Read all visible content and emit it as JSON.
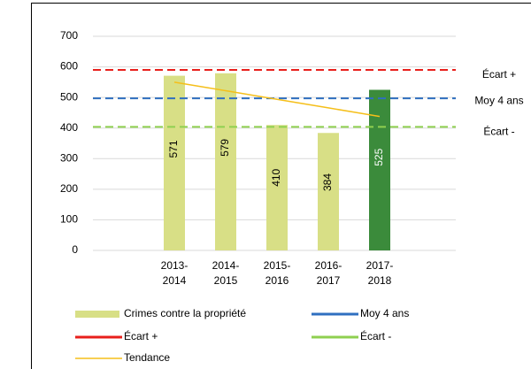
{
  "chart_data": {
    "type": "bar",
    "categories": [
      "2013-2014",
      "2014-2015",
      "2015-2016",
      "2016-2017",
      "2017-2018"
    ],
    "series": [
      {
        "name": "Crimes contre la propriété",
        "values": [
          571,
          579,
          410,
          384,
          525
        ],
        "colors": [
          "#d8df86",
          "#d8df86",
          "#d8df86",
          "#d8df86",
          "#3b8b3b"
        ]
      }
    ],
    "lines": [
      {
        "name": "Écart +",
        "color": "#e8201c",
        "value": 590,
        "dashed": true
      },
      {
        "name": "Moy 4 ans",
        "color": "#2f6fc0",
        "value": 497,
        "dashed": true
      },
      {
        "name": "Écart -",
        "color": "#8fd050",
        "value": 404,
        "dashed": true
      }
    ],
    "trend": {
      "name": "Tendance",
      "color": "#f5bf1a",
      "values": [
        550,
        522,
        494,
        466,
        438
      ]
    },
    "ylim": [
      0,
      700
    ],
    "yticks": [
      0,
      100,
      200,
      300,
      400,
      500,
      600,
      700
    ],
    "grid": true
  }
}
